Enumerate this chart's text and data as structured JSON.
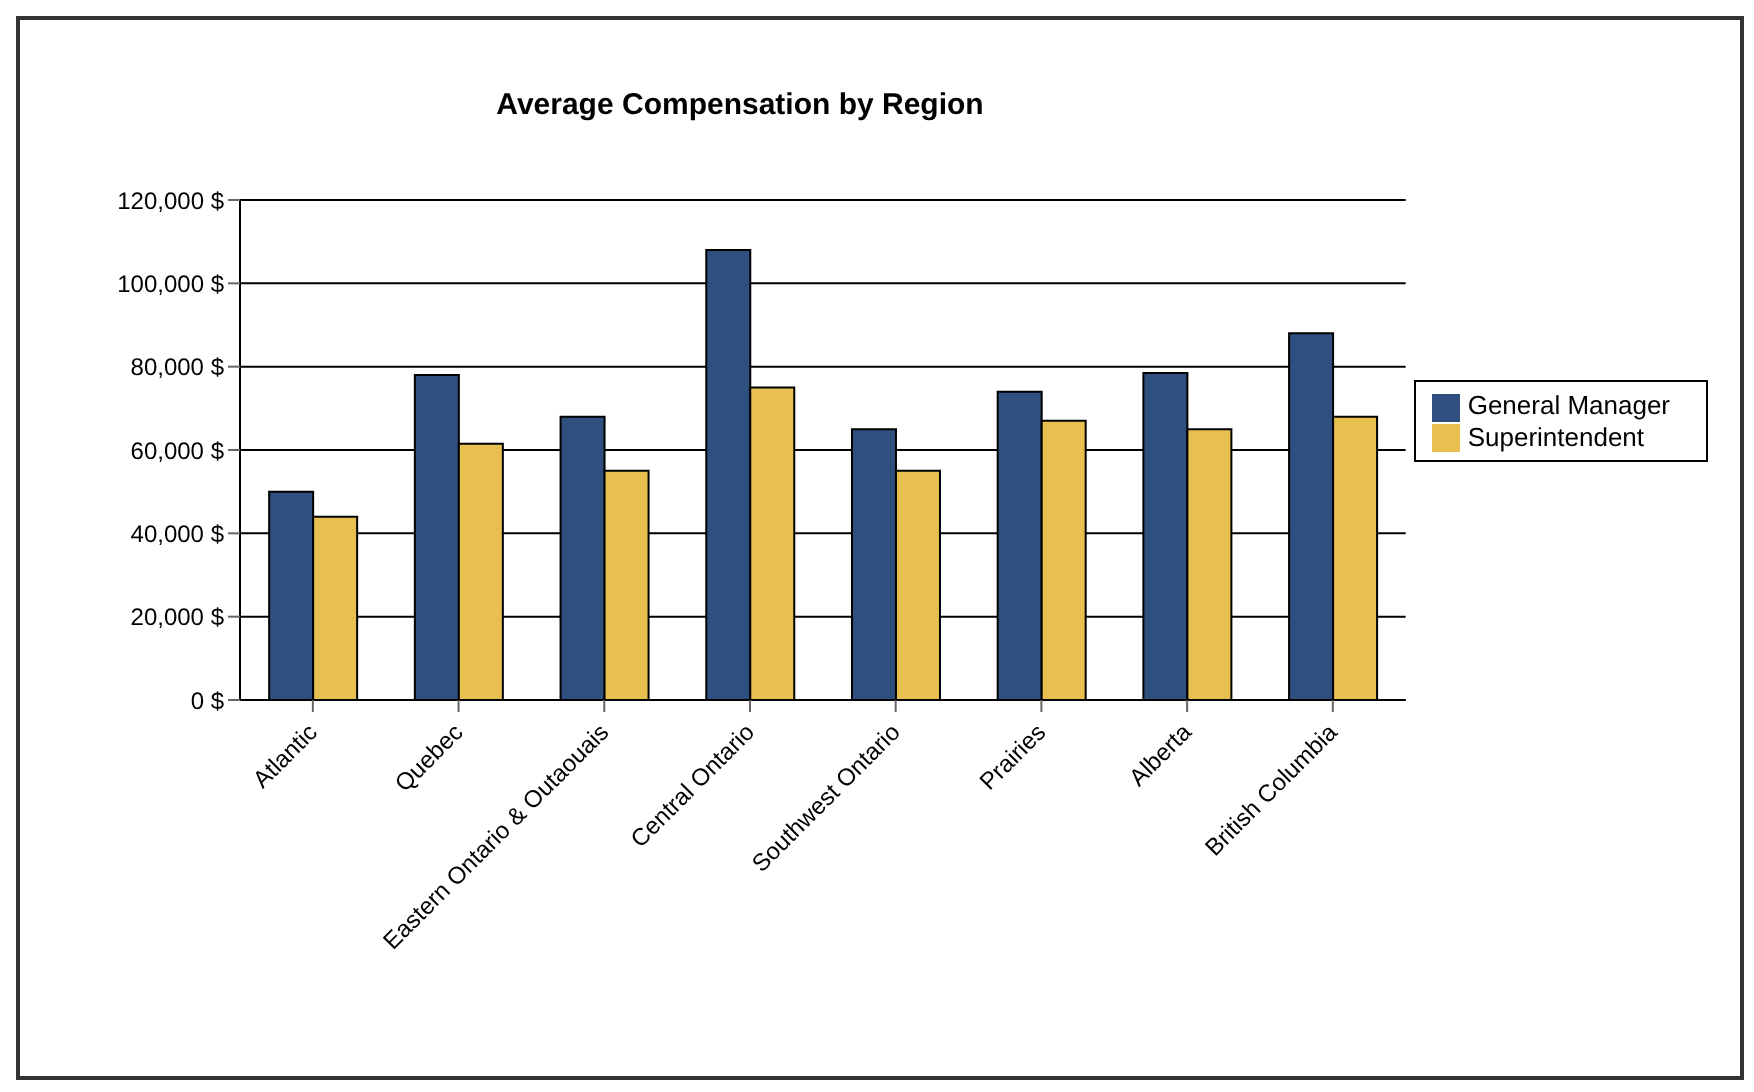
{
  "chart_data": {
    "type": "bar",
    "title": "Average Compensation by Region",
    "categories": [
      "Atlantic",
      "Quebec",
      "Eastern Ontario & Outaouais",
      "Central Ontario",
      "Southwest Ontario",
      "Prairies",
      "Alberta",
      "British Columbia"
    ],
    "series": [
      {
        "name": "General Manager",
        "color": "#2f4f7f",
        "values": [
          50000,
          78000,
          68000,
          108000,
          65000,
          74000,
          78500,
          88000
        ]
      },
      {
        "name": "Superintendent",
        "color": "#e8c050",
        "values": [
          44000,
          61500,
          55000,
          75000,
          55000,
          67000,
          65000,
          68000
        ]
      }
    ],
    "ylim": [
      0,
      120000
    ],
    "yticks": [
      {
        "value": 0,
        "label": "0 $"
      },
      {
        "value": 20000,
        "label": "20,000 $"
      },
      {
        "value": 40000,
        "label": "40,000 $"
      },
      {
        "value": 60000,
        "label": "60,000 $"
      },
      {
        "value": 80000,
        "label": "80,000 $"
      },
      {
        "value": 100000,
        "label": "100,000 $"
      },
      {
        "value": 120000,
        "label": "120,000 $"
      }
    ],
    "grid": "y",
    "legend": "right"
  }
}
